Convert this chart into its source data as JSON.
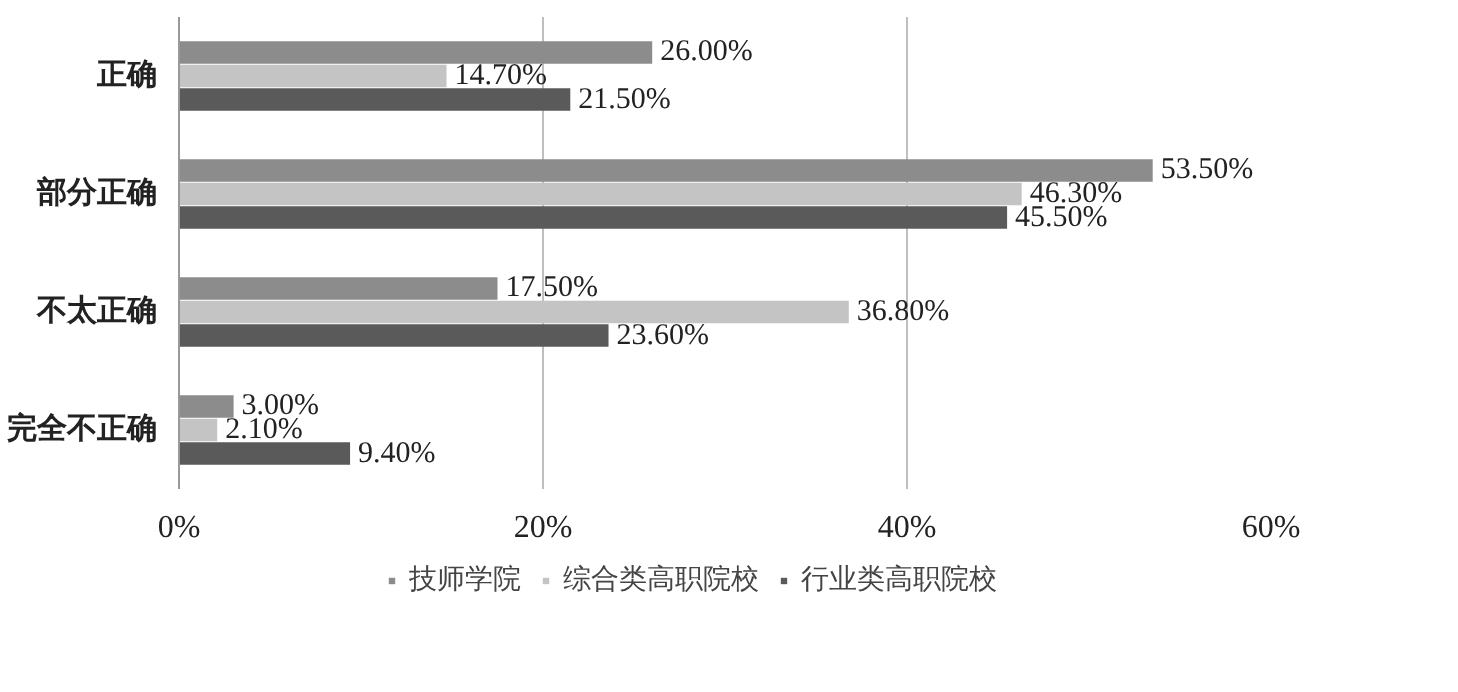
{
  "chart_data": {
    "type": "bar",
    "orientation": "horizontal",
    "categories": [
      "正确",
      "部分正确",
      "不太正确",
      "完全不正确"
    ],
    "series": [
      {
        "name": "技师学院",
        "color": "#8c8c8c",
        "values": [
          26.0,
          53.5,
          17.5,
          3.0
        ],
        "value_labels": [
          "26.00%",
          "53.50%",
          "17.50%",
          "3.00%"
        ]
      },
      {
        "name": "综合类高职院校",
        "color": "#c4c4c4",
        "values": [
          14.7,
          46.3,
          36.8,
          2.1
        ],
        "value_labels": [
          "14.70%",
          "46.30%",
          "36.80%",
          "2.10%"
        ]
      },
      {
        "name": "行业类高职院校",
        "color": "#5a5a5a",
        "values": [
          21.5,
          45.5,
          23.6,
          9.4
        ],
        "value_labels": [
          "21.50%",
          "45.50%",
          "23.60%",
          "9.40%"
        ]
      }
    ],
    "xlim": [
      0,
      60
    ],
    "xticks": [
      {
        "value": 0,
        "label": "0%"
      },
      {
        "value": 20,
        "label": "20%"
      },
      {
        "value": 40,
        "label": "40%"
      },
      {
        "value": 60,
        "label": "60%"
      }
    ],
    "grid": "x",
    "legend": "bottom"
  }
}
